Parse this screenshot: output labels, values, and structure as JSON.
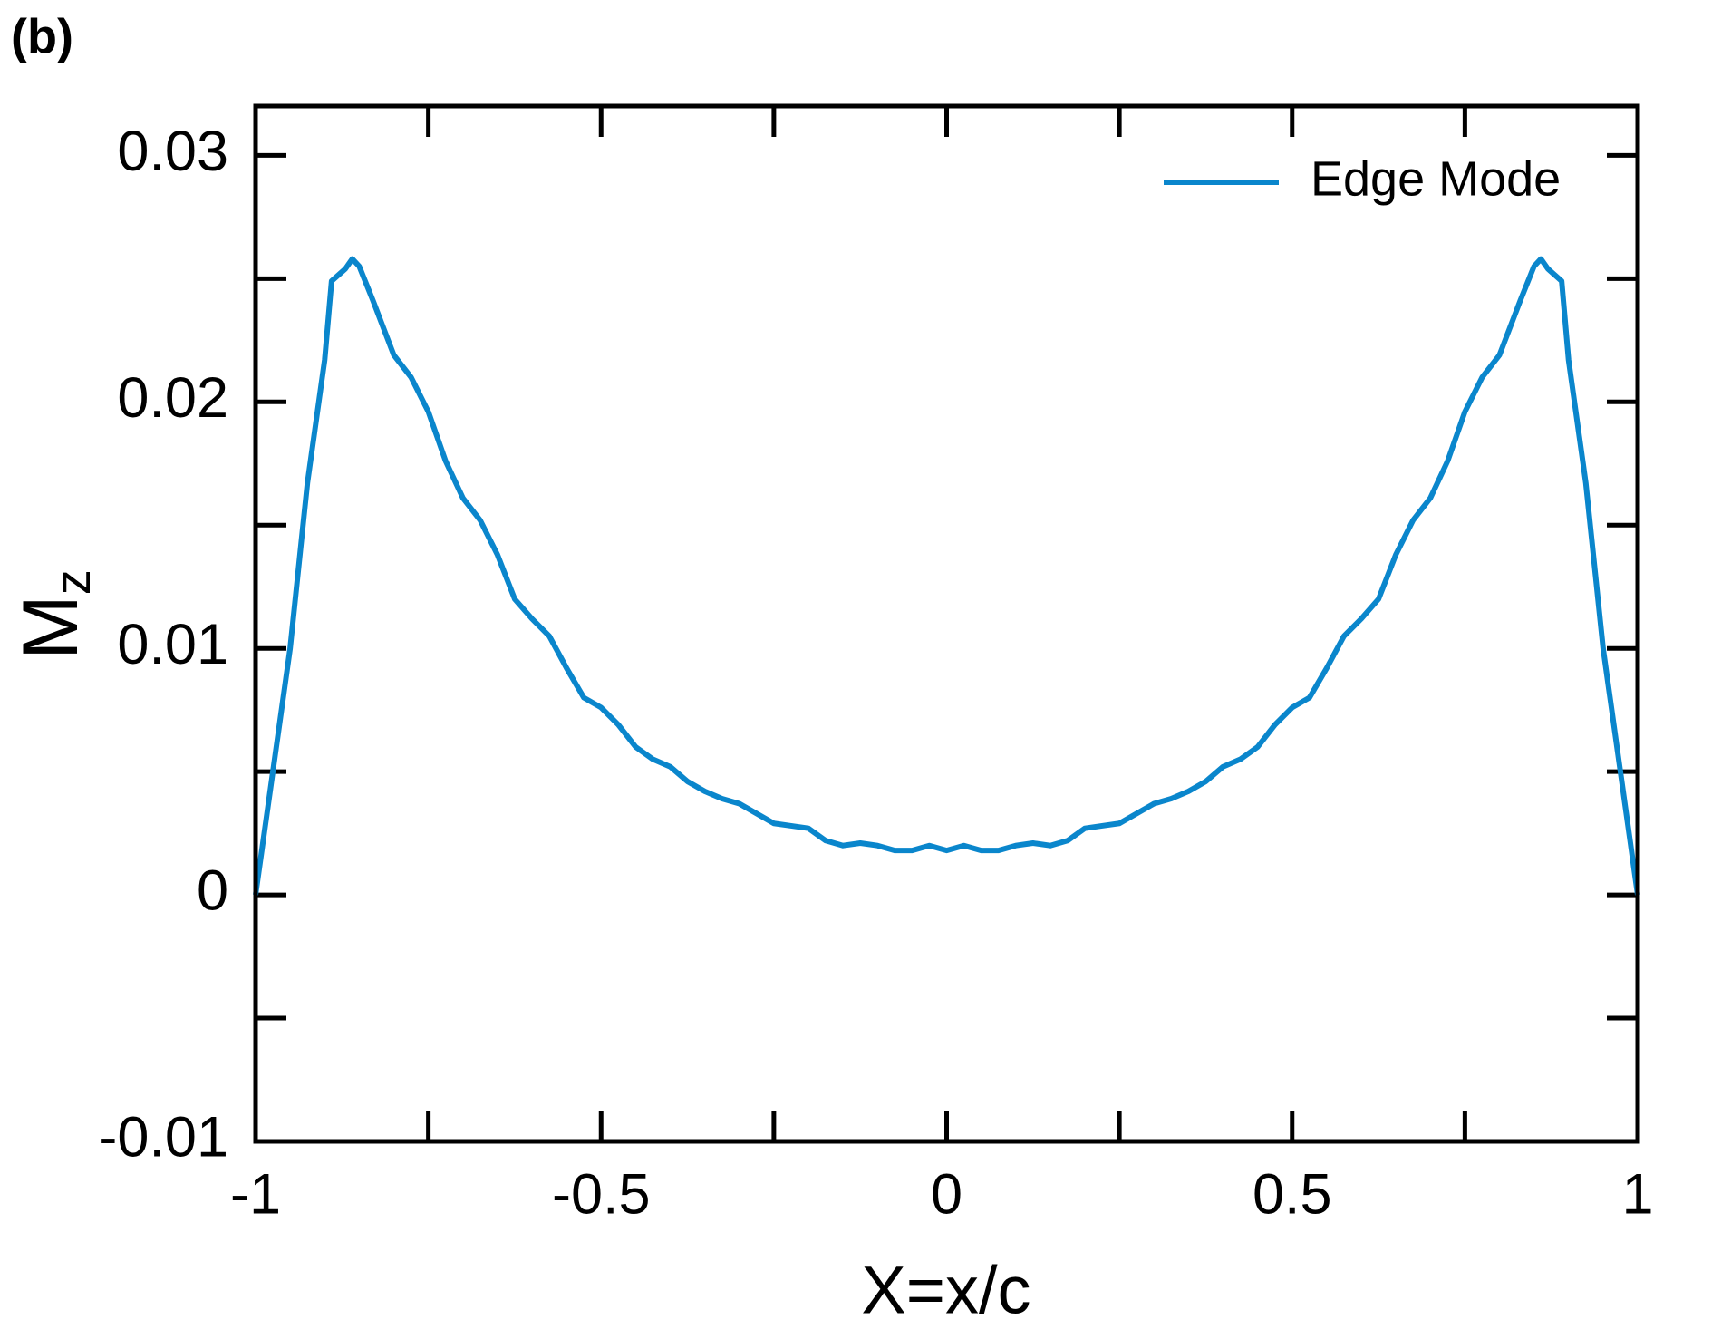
{
  "chart_data": {
    "type": "line",
    "panel_label": "(b)",
    "xlabel": "X=x/c",
    "ylabel": {
      "main": "M",
      "subscript": "z"
    },
    "x": [
      -1,
      -0.975,
      -0.95,
      -0.925,
      -0.9,
      -0.89,
      -0.87,
      -0.86,
      -0.85,
      -0.83,
      -0.8,
      -0.775,
      -0.75,
      -0.725,
      -0.7,
      -0.675,
      -0.65,
      -0.625,
      -0.6,
      -0.575,
      -0.55,
      -0.525,
      -0.5,
      -0.475,
      -0.45,
      -0.425,
      -0.4,
      -0.375,
      -0.35,
      -0.325,
      -0.3,
      -0.275,
      -0.25,
      -0.225,
      -0.2,
      -0.175,
      -0.15,
      -0.125,
      -0.1,
      -0.075,
      -0.05,
      -0.025,
      0,
      0.025,
      0.05,
      0.075,
      0.1,
      0.125,
      0.15,
      0.175,
      0.2,
      0.225,
      0.25,
      0.275,
      0.3,
      0.325,
      0.35,
      0.375,
      0.4,
      0.425,
      0.45,
      0.475,
      0.5,
      0.525,
      0.55,
      0.575,
      0.6,
      0.625,
      0.65,
      0.675,
      0.7,
      0.725,
      0.75,
      0.775,
      0.8,
      0.83,
      0.85,
      0.86,
      0.87,
      0.89,
      0.9,
      0.925,
      0.95,
      0.975,
      1
    ],
    "series": [
      {
        "name": "Edge Mode",
        "color": "#0a86cc",
        "values": [
          0,
          0.005,
          0.01,
          0.0167,
          0.0217,
          0.0249,
          0.0254,
          0.0258,
          0.0255,
          0.0241,
          0.0219,
          0.021,
          0.0196,
          0.0176,
          0.0161,
          0.0152,
          0.0138,
          0.012,
          0.0112,
          0.0105,
          0.0092,
          0.008,
          0.0076,
          0.0069,
          0.006,
          0.0055,
          0.0052,
          0.0046,
          0.0042,
          0.0039,
          0.0037,
          0.0033,
          0.0029,
          0.0028,
          0.0027,
          0.0022,
          0.002,
          0.0021,
          0.002,
          0.0018,
          0.0018,
          0.002,
          0.0018,
          0.002,
          0.0018,
          0.0018,
          0.002,
          0.0021,
          0.002,
          0.0022,
          0.0027,
          0.0028,
          0.0029,
          0.0033,
          0.0037,
          0.0039,
          0.0042,
          0.0046,
          0.0052,
          0.0055,
          0.006,
          0.0069,
          0.0076,
          0.008,
          0.0092,
          0.0105,
          0.0112,
          0.012,
          0.0138,
          0.0152,
          0.0161,
          0.0176,
          0.0196,
          0.021,
          0.0219,
          0.0241,
          0.0255,
          0.0258,
          0.0254,
          0.0249,
          0.0217,
          0.0167,
          0.01,
          0.005,
          0
        ]
      }
    ],
    "xlim": [
      -1,
      1
    ],
    "ylim": [
      -0.01,
      0.032
    ],
    "xticks": [
      {
        "value": -1,
        "label": "−1"
      },
      {
        "value": -0.5,
        "label": "−0.5"
      },
      0,
      0.5,
      1
    ],
    "xminor": [
      -0.75,
      -0.25,
      0.25,
      0.75
    ],
    "yticks": [
      {
        "value": -0.01,
        "label": "−0.01"
      },
      0,
      0.01,
      0.02,
      0.03
    ],
    "yminor": [
      -0.005,
      0.005,
      0.015,
      0.025
    ],
    "legend": "upper right",
    "grid": false
  }
}
